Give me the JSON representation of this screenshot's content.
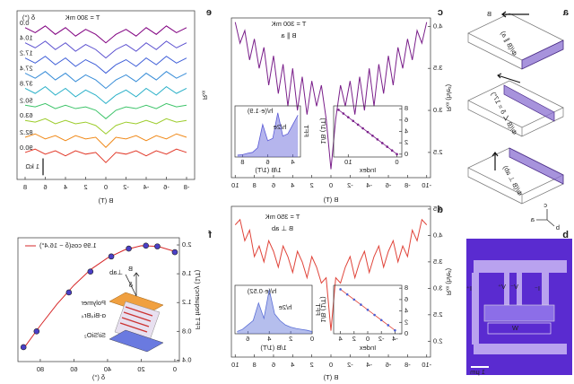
{
  "figure": {
    "panel_labels": [
      "a",
      "b",
      "c",
      "d",
      "e",
      "f"
    ],
    "schematic": {
      "field": "B",
      "labels": [
        "Φ/(B ∥ a)",
        "Φ/(B ∠ δ = 17°)",
        "Φ/(B ⊥ ab)"
      ],
      "axes": [
        "c",
        "a",
        "b"
      ]
    },
    "device": {
      "contacts": [
        "I⁺",
        "V⁺",
        "V⁻",
        "I⁻"
      ],
      "width": "W",
      "scale_bar": "1 μm"
    },
    "stack": {
      "field": "B",
      "normal": "⊥ab",
      "angle": "δ",
      "layers": [
        "Polymer",
        "α-Bi₄Br₄",
        "Si/SiO₂"
      ]
    }
  },
  "chart_data": [
    {
      "type": "line",
      "title": "T = 300 mK",
      "subtitle": "B ∥ a",
      "x_label": "B (T)",
      "y_label": "Rₓₓ (h/e²)",
      "x": [
        -10,
        -9.5,
        -9,
        -8.5,
        -8,
        -7.5,
        -7,
        -6.5,
        -6,
        -5.5,
        -5,
        -4.5,
        -4,
        -3.5,
        -3,
        -2.5,
        -2,
        -1.5,
        -1,
        -0.5,
        0,
        0.5,
        1,
        1.5,
        2,
        2.5,
        3,
        3.5,
        4,
        4.5,
        5,
        5.5,
        6,
        6.5,
        7,
        7.5,
        8,
        8.5,
        9,
        9.5,
        10
      ],
      "series": [
        {
          "color": "#7a1f8a",
          "values": [
            4.05,
            3.8,
            3.95,
            3.6,
            3.85,
            3.5,
            3.75,
            3.3,
            3.65,
            3.2,
            3.55,
            3.05,
            3.5,
            3.0,
            3.4,
            2.95,
            3.35,
            3.05,
            3.3,
            2.9,
            2.3,
            2.9,
            3.3,
            3.05,
            3.35,
            2.95,
            3.4,
            3.0,
            3.5,
            3.05,
            3.55,
            3.2,
            3.65,
            3.3,
            3.75,
            3.5,
            3.85,
            3.6,
            3.95,
            3.8,
            4.05
          ]
        }
      ],
      "xlim": [
        -10.4,
        10.4
      ],
      "xticks": [
        -10,
        -8,
        -6,
        -4,
        -2,
        0,
        2,
        4,
        6,
        8,
        10
      ],
      "ylim": [
        2.2,
        4.1
      ],
      "yticks": [
        2.5,
        {
          "value": 3,
          "label": "3.0"
        },
        3.5,
        {
          "value": 4,
          "label": "4.0"
        }
      ]
    },
    {
      "type": "line",
      "x_label": "1/B (1/T)",
      "y_label": "FFT",
      "annotations": [
        "h/(e·1.9)",
        "h/2e"
      ],
      "fill": true,
      "x": [
        3.6,
        4.0,
        4.4,
        4.8,
        5.2,
        5.6,
        6.0,
        6.4,
        6.8,
        7.2,
        7.6,
        8.0,
        8.4
      ],
      "series": [
        {
          "color": "#5b5bd6",
          "values": [
            0.9,
            0.7,
            0.5,
            0.45,
            0.95,
            0.4,
            0.35,
            0.7,
            0.2,
            0.1,
            0.08,
            0.05,
            0.04
          ]
        }
      ],
      "xlim": [
        3.4,
        8.6
      ],
      "xticks": [
        4,
        6,
        8
      ],
      "ylim": [
        0,
        1.1
      ]
    },
    {
      "type": "line",
      "x_label": "Index",
      "y_label": "1/B (1/T)",
      "x": [
        0,
        1,
        2,
        3,
        4,
        5,
        6,
        7,
        8,
        9,
        10,
        11,
        12
      ],
      "series": [
        {
          "color": "#7a1f8a",
          "mode": "both",
          "values": [
            0,
            0.65,
            1.3,
            1.95,
            2.6,
            3.25,
            3.9,
            4.55,
            5.2,
            5.85,
            6.5,
            7.15,
            7.8
          ]
        }
      ],
      "xlim": [
        -1,
        13
      ],
      "xticks": [
        0,
        10
      ],
      "ylim": [
        -0.5,
        8.5
      ],
      "yticks": [
        0,
        2,
        4,
        6,
        8
      ]
    },
    {
      "type": "line",
      "title": "T = 350 mK",
      "subtitle": "B ⊥ ab",
      "x_label": "B (T)",
      "y_label": "Rₓₓ (h/e²)",
      "x": [
        -10,
        -9.5,
        -9,
        -8.5,
        -8,
        -7.5,
        -7,
        -6.5,
        -6,
        -5.5,
        -5,
        -4.5,
        -4,
        -3.5,
        -3,
        -2.5,
        -2,
        -1.5,
        -1,
        -0.5,
        0,
        0.5,
        1,
        1.5,
        2,
        2.5,
        3,
        3.5,
        4,
        4.5,
        5,
        5.5,
        6,
        6.5,
        7,
        7.5,
        8,
        8.5,
        9,
        9.5,
        10
      ],
      "series": [
        {
          "color": "#e0443a",
          "values": [
            4.2,
            4.3,
            3.9,
            4.1,
            3.6,
            3.8,
            3.5,
            3.9,
            3.7,
            3.4,
            3.8,
            3.6,
            3.3,
            3.7,
            3.5,
            3.2,
            3.6,
            3.4,
            3.1,
            3.2,
            2.2,
            3.2,
            3.1,
            3.4,
            3.6,
            3.2,
            3.5,
            3.7,
            3.3,
            3.6,
            3.8,
            3.4,
            3.7,
            3.9,
            3.5,
            3.8,
            3.6,
            4.1,
            3.9,
            4.3,
            4.2
          ]
        }
      ],
      "xlim": [
        -10.4,
        10.4
      ],
      "xticks": [
        -10,
        -8,
        -6,
        -4,
        -2,
        0,
        2,
        4,
        6,
        8,
        10
      ],
      "ylim": [
        1.7,
        4.55
      ],
      "yticks": [
        {
          "value": 2,
          "label": "2.0"
        },
        2.5,
        {
          "value": 3,
          "label": "3.0"
        },
        3.5,
        {
          "value": 4,
          "label": "4.0"
        },
        4.5
      ]
    },
    {
      "type": "line",
      "x_label": "1/B (1/T)",
      "y_label": "FFT",
      "annotations": [
        "h/(e·0.52)",
        "h/2e"
      ],
      "fill": true,
      "x": [
        0,
        0.5,
        1,
        1.5,
        2,
        2.5,
        3,
        3.5,
        4,
        4.5,
        5,
        5.5,
        6,
        6.5,
        7
      ],
      "series": [
        {
          "color": "#5b6fd6",
          "values": [
            0.05,
            0.08,
            0.1,
            0.12,
            0.15,
            0.2,
            0.3,
            0.45,
            1.0,
            0.35,
            0.7,
            0.3,
            0.2,
            0.1,
            0.05
          ]
        }
      ],
      "xlim": [
        0,
        7.2
      ],
      "xticks": [
        0,
        2,
        4,
        6
      ],
      "ylim": [
        0,
        1.1
      ]
    },
    {
      "type": "line",
      "x_label": "Index",
      "y_label": "1/B (1/T)",
      "x": [
        -4,
        -3,
        -2,
        -1,
        0,
        1,
        2,
        3,
        4
      ],
      "series": [
        {
          "color": "#e0443a",
          "marker_color": "#4b5fd6",
          "mode": "both",
          "values": [
            0.6,
            1.5,
            2.4,
            3.3,
            4.2,
            5.1,
            6.0,
            6.9,
            7.8
          ]
        }
      ],
      "xlim": [
        -5,
        5
      ],
      "xticks": [
        -4,
        -2,
        0,
        2,
        4
      ],
      "ylim": [
        0,
        8.5
      ],
      "yticks": [
        0,
        2,
        4,
        6,
        8
      ]
    },
    {
      "type": "line",
      "title": "T = 300 mK",
      "legend_title": "δ (°)",
      "x_label": "B (T)",
      "y_label": "Rₓₓ",
      "scale_bar": {
        "value": 1,
        "label": "1 kΩ"
      },
      "x": [
        -8,
        -7,
        -6,
        -5,
        -4,
        -3,
        -2,
        -1,
        0,
        1,
        2,
        3,
        4,
        5,
        6,
        7,
        8
      ],
      "series": [
        {
          "name": "0.0",
          "color": "#800080",
          "values": [
            9.0,
            8.7,
            9.1,
            8.6,
            9.0,
            8.5,
            8.9,
            8.6,
            8.1,
            8.6,
            8.9,
            8.5,
            9.0,
            8.6,
            9.1,
            8.7,
            9.0
          ]
        },
        {
          "name": "10.4",
          "color": "#5a4fcf",
          "values": [
            8.1,
            7.8,
            8.2,
            7.7,
            8.1,
            7.6,
            8.0,
            7.7,
            7.2,
            7.7,
            8.0,
            7.6,
            8.1,
            7.7,
            8.2,
            7.8,
            8.1
          ]
        },
        {
          "name": "17.2",
          "color": "#3f5fd8",
          "values": [
            7.2,
            6.9,
            7.3,
            6.8,
            7.2,
            6.7,
            7.1,
            6.8,
            6.3,
            6.8,
            7.1,
            6.7,
            7.2,
            6.8,
            7.3,
            6.9,
            7.2
          ]
        },
        {
          "name": "27.4",
          "color": "#3a8ed8",
          "values": [
            6.3,
            6.0,
            6.4,
            5.9,
            6.3,
            5.8,
            6.2,
            5.9,
            5.4,
            5.9,
            6.2,
            5.8,
            6.3,
            5.9,
            6.4,
            6.0,
            6.3
          ]
        },
        {
          "name": "37.8",
          "color": "#2ab0c8",
          "values": [
            5.4,
            5.1,
            5.5,
            5.0,
            5.4,
            4.9,
            5.3,
            5.0,
            4.5,
            5.0,
            5.3,
            4.9,
            5.4,
            5.0,
            5.5,
            5.1,
            5.4
          ]
        },
        {
          "name": "50.2",
          "color": "#3ec46a",
          "values": [
            4.4,
            4.3,
            4.5,
            4.2,
            4.4,
            4.2,
            4.3,
            4.1,
            3.6,
            4.1,
            4.3,
            4.2,
            4.4,
            4.2,
            4.5,
            4.3,
            4.4
          ]
        },
        {
          "name": "63.0",
          "color": "#9ccc2a",
          "values": [
            3.5,
            3.4,
            3.6,
            3.3,
            3.5,
            3.3,
            3.4,
            3.2,
            2.7,
            3.2,
            3.4,
            3.3,
            3.5,
            3.3,
            3.6,
            3.4,
            3.5
          ]
        },
        {
          "name": "82.2",
          "color": "#f08a1a",
          "values": [
            2.5,
            2.7,
            2.4,
            2.6,
            2.3,
            2.6,
            2.4,
            2.5,
            1.9,
            2.5,
            2.4,
            2.6,
            2.3,
            2.6,
            2.4,
            2.7,
            2.5
          ]
        },
        {
          "name": "90.0",
          "color": "#e23a2a",
          "values": [
            1.6,
            1.8,
            1.5,
            1.7,
            1.4,
            1.7,
            1.5,
            1.6,
            1.0,
            1.6,
            1.5,
            1.7,
            1.4,
            1.7,
            1.5,
            1.8,
            1.6
          ]
        }
      ],
      "xlim": [
        -8.8,
        8.8
      ],
      "xticks": [
        -8,
        -6,
        -4,
        -2,
        0,
        2,
        4,
        6,
        8
      ],
      "ylim": [
        0,
        10
      ]
    },
    {
      "type": "scatter",
      "x_label": "δ (°)",
      "y_label": "FFT frequency (1/T)",
      "series": [
        {
          "name": "1.99 cos(δ − 16.4°)",
          "color": "#d62728",
          "mode": "line",
          "x": [
            0,
            10,
            20,
            30,
            40,
            50,
            60,
            70,
            80,
            90
          ],
          "values": [
            1.91,
            1.98,
            1.99,
            1.93,
            1.82,
            1.66,
            1.44,
            1.18,
            0.88,
            0.56
          ]
        },
        {
          "color": "#4b3fc6",
          "mode": "markers",
          "x": [
            0,
            10.4,
            17.2,
            27.4,
            37.8,
            50.2,
            63.0,
            82.2,
            90.0
          ],
          "values": [
            1.9,
            1.98,
            1.99,
            1.95,
            1.84,
            1.63,
            1.34,
            0.8,
            0.58
          ]
        }
      ],
      "xlim": [
        -2.7,
        93.3
      ],
      "xticks": [
        0,
        20,
        40,
        60,
        80
      ],
      "ylim": [
        0.38,
        2.1
      ],
      "yticks": [
        0.4,
        0.8,
        1.2,
        1.6,
        {
          "value": 2,
          "label": "2.0"
        }
      ]
    }
  ]
}
